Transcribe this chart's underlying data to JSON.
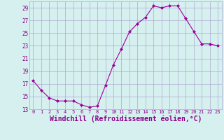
{
  "x": [
    0,
    1,
    2,
    3,
    4,
    5,
    6,
    7,
    8,
    9,
    10,
    11,
    12,
    13,
    14,
    15,
    16,
    17,
    18,
    19,
    20,
    21,
    22,
    23
  ],
  "y": [
    17.5,
    16.0,
    14.8,
    14.3,
    14.3,
    14.3,
    13.7,
    13.3,
    13.5,
    16.7,
    20.0,
    22.5,
    25.2,
    26.5,
    27.5,
    29.3,
    29.0,
    29.3,
    29.3,
    27.3,
    25.3,
    23.3,
    23.3,
    23.0
  ],
  "line_color": "#990099",
  "marker": "D",
  "marker_size": 2,
  "bg_color": "#d6f0f0",
  "grid_color": "#aaaacc",
  "xlabel": "Windchill (Refroidissement éolien,°C)",
  "xlabel_fontsize": 7,
  "tick_label_color": "#880088",
  "ylim": [
    13,
    30
  ],
  "yticks": [
    13,
    15,
    17,
    19,
    21,
    23,
    25,
    27,
    29
  ],
  "xticks": [
    0,
    1,
    2,
    3,
    4,
    5,
    6,
    7,
    8,
    9,
    10,
    11,
    12,
    13,
    14,
    15,
    16,
    17,
    18,
    19,
    20,
    21,
    22,
    23
  ],
  "xlim": [
    -0.5,
    23.5
  ]
}
